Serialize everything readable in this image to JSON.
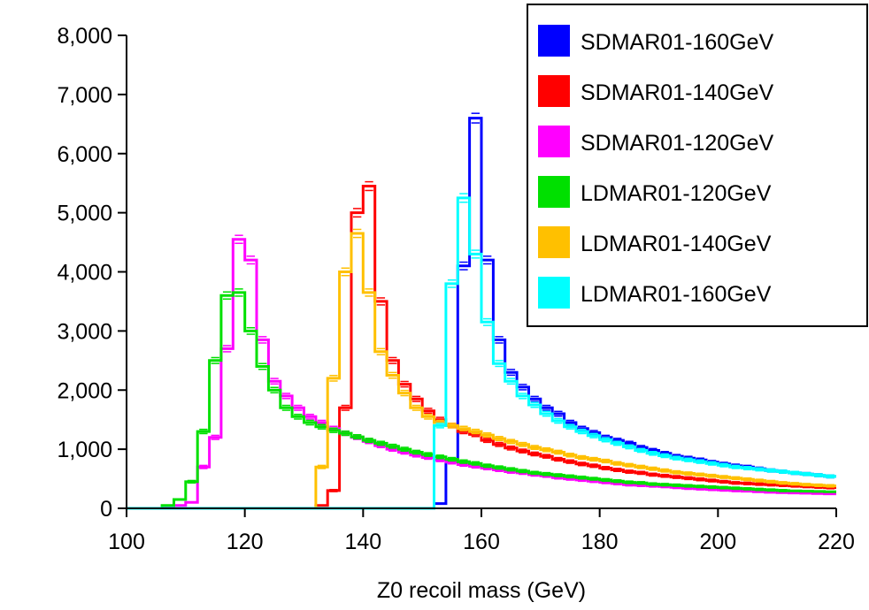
{
  "chart_data": {
    "type": "histogram",
    "title": "",
    "xlabel": "Z0 recoil mass (GeV)",
    "ylabel": "",
    "xlim": [
      100,
      220
    ],
    "ylim": [
      0,
      8000
    ],
    "xticks": [
      "100",
      "120",
      "140",
      "160",
      "180",
      "200",
      "220"
    ],
    "yticks": [
      "0",
      "1,000",
      "2,000",
      "3,000",
      "4,000",
      "5,000",
      "6,000",
      "7,000",
      "8,000"
    ],
    "grid": false,
    "legend_position": "top-right",
    "bin_edges": [
      100,
      102,
      104,
      106,
      108,
      110,
      112,
      114,
      116,
      118,
      120,
      122,
      124,
      126,
      128,
      130,
      132,
      134,
      136,
      138,
      140,
      142,
      144,
      146,
      148,
      150,
      152,
      154,
      156,
      158,
      160,
      162,
      164,
      166,
      168,
      170,
      172,
      174,
      176,
      178,
      180,
      182,
      184,
      186,
      188,
      190,
      192,
      194,
      196,
      198,
      200,
      202,
      204,
      206,
      208,
      210,
      212,
      214,
      216,
      218,
      220
    ],
    "series": [
      {
        "name": "SDMAR01-160GeV",
        "color": "#0000ff",
        "values": [
          0,
          0,
          0,
          0,
          0,
          0,
          0,
          0,
          0,
          0,
          0,
          0,
          0,
          0,
          0,
          0,
          0,
          0,
          0,
          0,
          0,
          0,
          0,
          0,
          0,
          0,
          80,
          800,
          4100,
          6600,
          4200,
          2850,
          2300,
          2050,
          1850,
          1700,
          1600,
          1450,
          1350,
          1280,
          1200,
          1150,
          1100,
          1030,
          980,
          930,
          880,
          850,
          820,
          780,
          750,
          720,
          700,
          670,
          640,
          620,
          600,
          580,
          560,
          540
        ]
      },
      {
        "name": "SDMAR01-140GeV",
        "color": "#ff0000",
        "values": [
          0,
          0,
          0,
          0,
          0,
          0,
          0,
          0,
          0,
          0,
          0,
          0,
          0,
          0,
          0,
          0,
          50,
          300,
          1700,
          5000,
          5450,
          3500,
          2500,
          2100,
          1850,
          1650,
          1500,
          1400,
          1300,
          1250,
          1150,
          1080,
          1020,
          970,
          920,
          880,
          830,
          790,
          750,
          720,
          680,
          650,
          620,
          600,
          570,
          550,
          530,
          510,
          490,
          470,
          450,
          430,
          420,
          410,
          400,
          390,
          380,
          370,
          360,
          350
        ]
      },
      {
        "name": "SDMAR01-120GeV",
        "color": "#ff00ff",
        "values": [
          0,
          0,
          0,
          20,
          50,
          100,
          700,
          1200,
          2700,
          4550,
          4200,
          2850,
          2150,
          1900,
          1700,
          1550,
          1450,
          1350,
          1270,
          1200,
          1130,
          1060,
          1000,
          950,
          900,
          860,
          820,
          780,
          740,
          710,
          680,
          650,
          620,
          600,
          570,
          550,
          520,
          500,
          480,
          460,
          440,
          420,
          400,
          390,
          380,
          370,
          355,
          340,
          330,
          320,
          310,
          300,
          290,
          280,
          270,
          265,
          260,
          255,
          250,
          245
        ]
      },
      {
        "name": "LDMAR01-120GeV",
        "color": "#00e000",
        "values": [
          0,
          0,
          0,
          50,
          150,
          450,
          1300,
          2500,
          3600,
          3650,
          3000,
          2400,
          2000,
          1700,
          1550,
          1450,
          1380,
          1320,
          1270,
          1210,
          1150,
          1100,
          1050,
          1000,
          950,
          910,
          870,
          830,
          790,
          760,
          720,
          690,
          660,
          630,
          600,
          580,
          560,
          540,
          520,
          500,
          480,
          460,
          440,
          430,
          410,
          400,
          390,
          380,
          370,
          360,
          350,
          340,
          330,
          320,
          310,
          300,
          295,
          290,
          285,
          280
        ]
      },
      {
        "name": "LDMAR01-140GeV",
        "color": "#ffc000",
        "values": [
          0,
          0,
          0,
          0,
          0,
          0,
          0,
          0,
          0,
          0,
          0,
          0,
          0,
          0,
          0,
          0,
          700,
          2200,
          4000,
          4650,
          3650,
          2650,
          2250,
          1950,
          1700,
          1550,
          1450,
          1400,
          1350,
          1300,
          1240,
          1180,
          1130,
          1080,
          1030,
          990,
          950,
          900,
          860,
          830,
          800,
          760,
          730,
          700,
          670,
          640,
          610,
          590,
          570,
          550,
          530,
          510,
          490,
          470,
          450,
          430,
          415,
          400,
          390,
          380
        ]
      },
      {
        "name": "LDMAR01-160GeV",
        "color": "#00ffff",
        "values": [
          0,
          0,
          0,
          0,
          0,
          0,
          0,
          0,
          0,
          0,
          0,
          0,
          0,
          0,
          0,
          0,
          0,
          0,
          0,
          0,
          0,
          0,
          0,
          0,
          0,
          0,
          1400,
          3800,
          5250,
          4300,
          3150,
          2450,
          2150,
          1900,
          1750,
          1600,
          1480,
          1380,
          1300,
          1230,
          1160,
          1100,
          1040,
          980,
          930,
          890,
          850,
          820,
          790,
          760,
          730,
          700,
          680,
          660,
          640,
          620,
          600,
          580,
          560,
          540
        ]
      }
    ]
  }
}
